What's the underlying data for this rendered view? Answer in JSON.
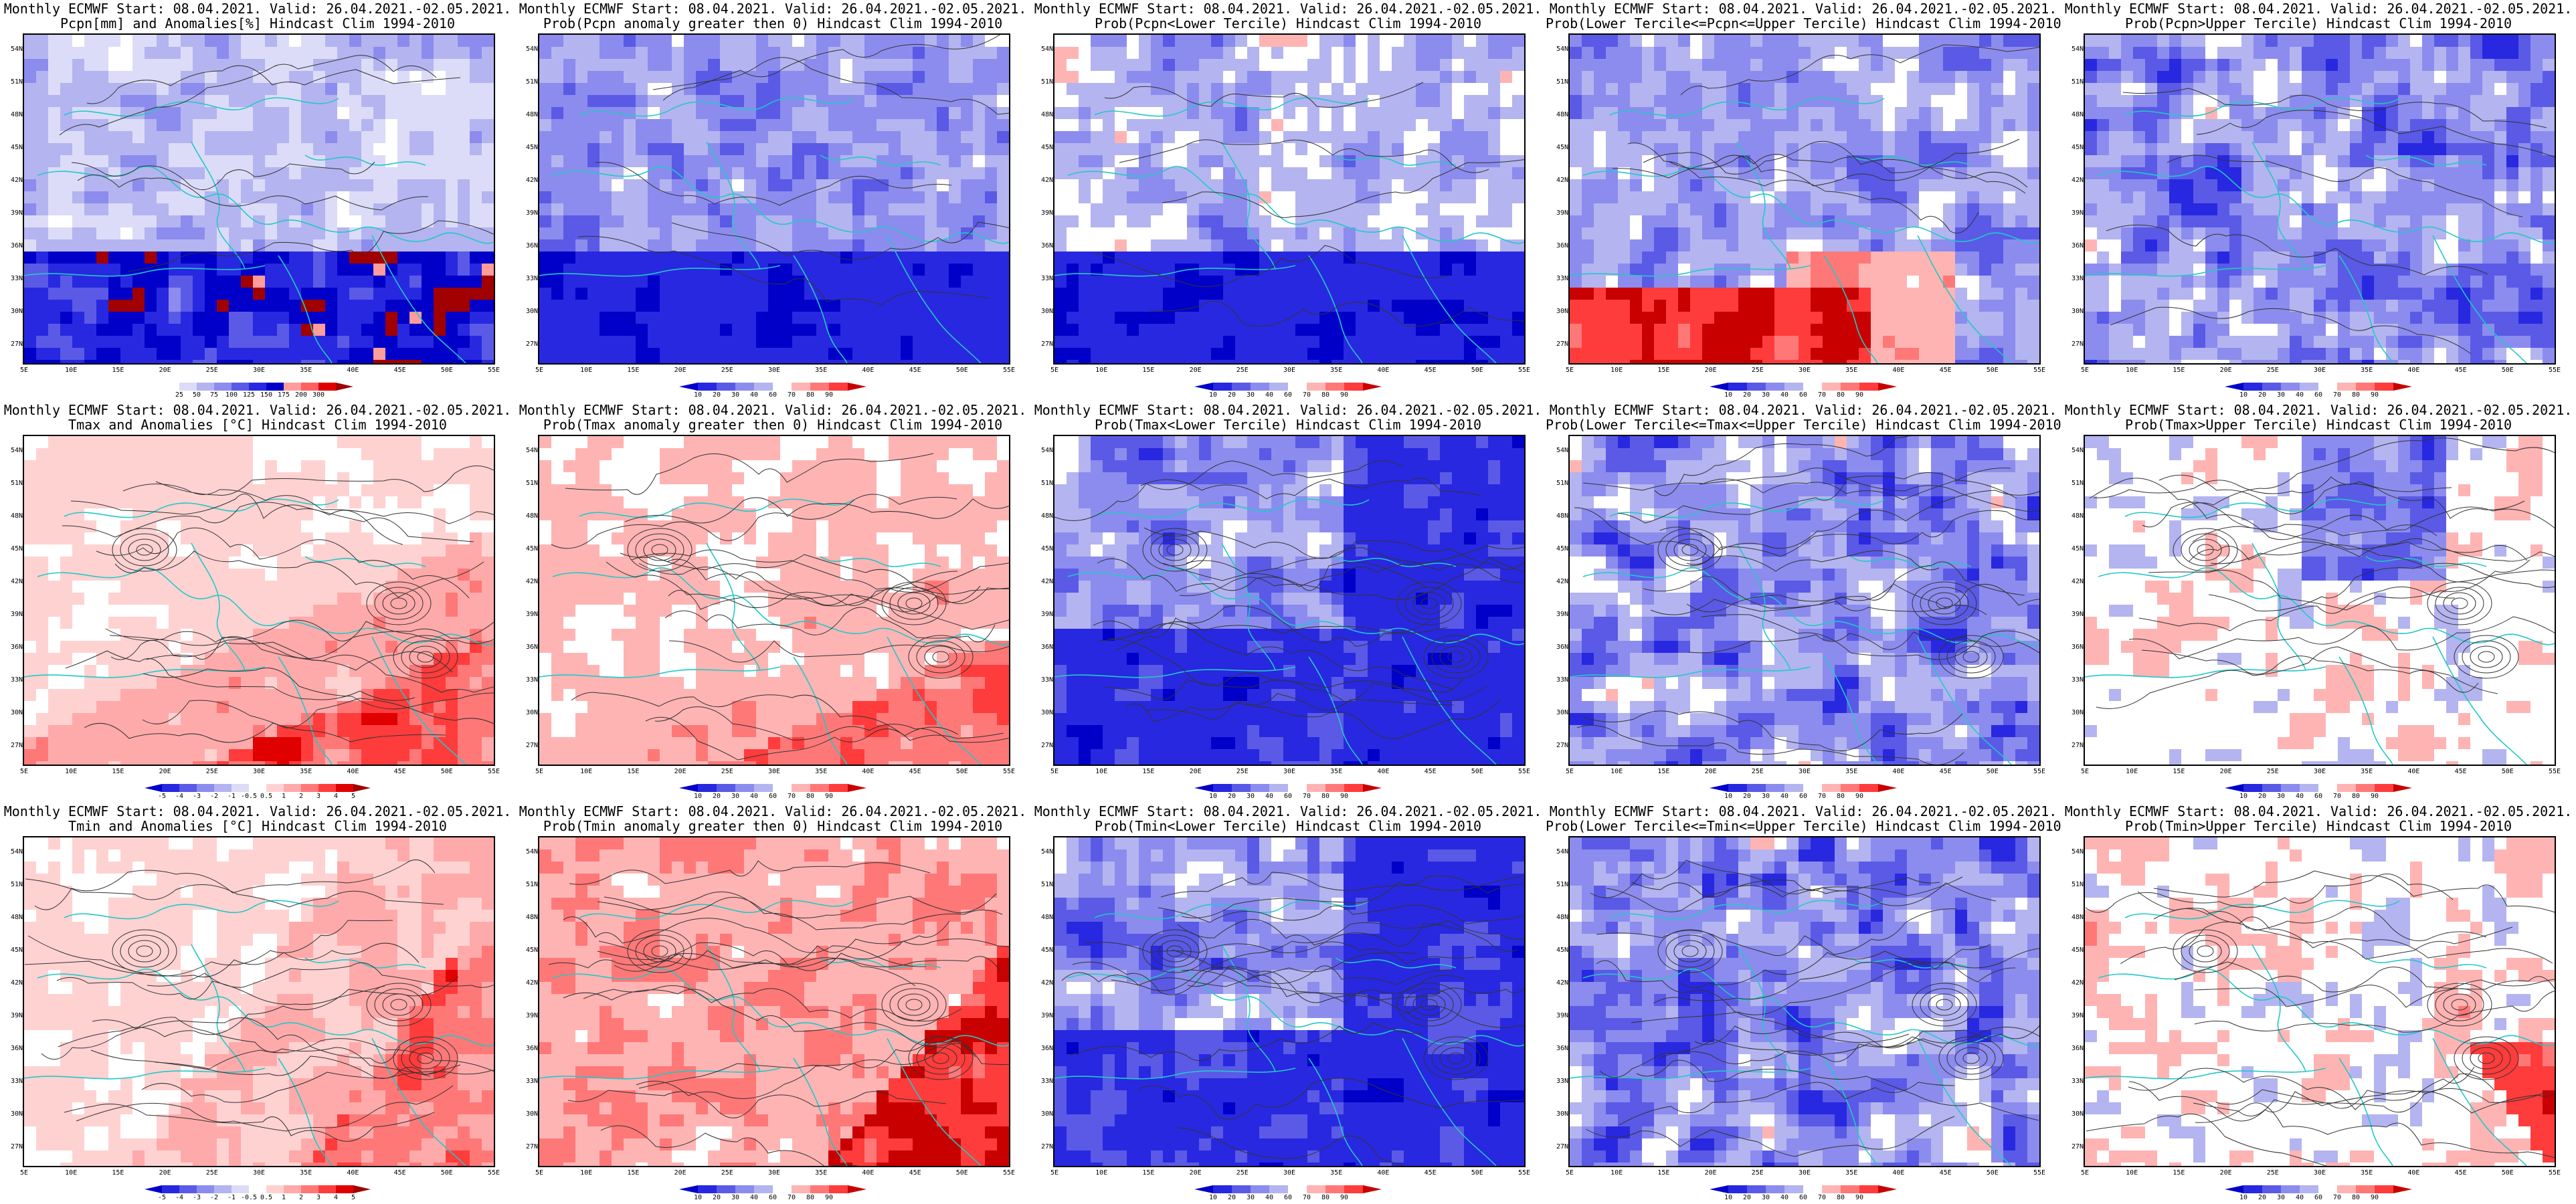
{
  "title_line1": "Monthly ECMWF Start: 08.04.2021. Valid: 26.04.2021.-02.05.2021.",
  "lat_labels": [
    "54N",
    "51N",
    "48N",
    "45N",
    "42N",
    "39N",
    "36N",
    "33N",
    "30N",
    "27N"
  ],
  "lon_labels": [
    "5E",
    "10E",
    "15E",
    "20E",
    "25E",
    "30E",
    "35E",
    "40E",
    "45E",
    "50E",
    "55E"
  ],
  "colors": {
    "pcpn_anom": [
      "#ffffff",
      "#dcdcf8",
      "#b4b4f0",
      "#8c8cee",
      "#5a5ae6",
      "#2828e0",
      "#0000c8",
      "#ff9c9c",
      "#ff6060",
      "#e00000",
      "#a00000"
    ],
    "prob": [
      "#0000c8",
      "#2828e0",
      "#5a5ae6",
      "#8c8cee",
      "#b4b4f0",
      "#ffffff",
      "#ffb4b4",
      "#ff7878",
      "#ff3c3c",
      "#c80000"
    ],
    "temp_anom": [
      "#0000c8",
      "#2828e0",
      "#5a5ae6",
      "#8c8cee",
      "#b4b4f0",
      "#dcdcf8",
      "#ffffff",
      "#ffd2d2",
      "#ffaaaa",
      "#ff7878",
      "#ff3c3c",
      "#e00000",
      "#a00000"
    ]
  },
  "legends": {
    "pcpn_anom": [
      "25",
      "50",
      "75",
      "100",
      "125",
      "150",
      "175",
      "200",
      "300"
    ],
    "prob": [
      "10",
      "20",
      "30",
      "40",
      "60",
      "70",
      "80",
      "90"
    ],
    "temp_anom": [
      "-5",
      "-4",
      "-3",
      "-2",
      "-1",
      "-0.5",
      "0.5",
      "1",
      "2",
      "3",
      "4",
      "5"
    ]
  },
  "panels": [
    {
      "id": "pcpn-anomaly",
      "line2": "Pcpn[mm] and Anomalies[%] Hindcast Clim 1994-2010",
      "scale": "pcpn_anom",
      "pattern": "pcpn_anom",
      "contours": "sparse"
    },
    {
      "id": "pcpn-prob-above-zero",
      "line2": "Prob(Pcpn anomaly greater then 0) Hindcast Clim 1994-2010",
      "scale": "prob",
      "pattern": "blue_south",
      "contours": "sparse"
    },
    {
      "id": "pcpn-prob-lower-tercile",
      "line2": "Prob(Pcpn<Lower Tercile) Hindcast Clim 1994-2010",
      "scale": "prob",
      "pattern": "blue_south_white",
      "contours": "sparse"
    },
    {
      "id": "pcpn-prob-middle-tercile",
      "line2": "Prob(Lower Tercile<=Pcpn<=Upper Tercile) Hindcast Clim 1994-2010",
      "scale": "prob",
      "pattern": "red_south",
      "contours": "sparse"
    },
    {
      "id": "pcpn-prob-upper-tercile",
      "line2": "Prob(Pcpn>Upper Tercile) Hindcast Clim 1994-2010",
      "scale": "prob",
      "pattern": "blue_mix",
      "contours": "sparse"
    },
    {
      "id": "tmax-anomaly",
      "line2": "Tmax and Anomalies [°C] Hindcast Clim 1994-2010",
      "scale": "temp_anom",
      "pattern": "red_southeast",
      "contours": "dense"
    },
    {
      "id": "tmax-prob-above-zero",
      "line2": "Prob(Tmax anomaly greater then 0) Hindcast Clim 1994-2010",
      "scale": "prob",
      "pattern": "red_southeast",
      "contours": "dense"
    },
    {
      "id": "tmax-prob-lower-tercile",
      "line2": "Prob(Tmax<Lower Tercile) Hindcast Clim 1994-2010",
      "scale": "prob",
      "pattern": "blue_strong",
      "contours": "dense"
    },
    {
      "id": "tmax-prob-middle-tercile",
      "line2": "Prob(Lower Tercile<=Tmax<=Upper Tercile) Hindcast Clim 1994-2010",
      "scale": "prob",
      "pattern": "blue_mix",
      "contours": "dense"
    },
    {
      "id": "tmax-prob-upper-tercile",
      "line2": "Prob(Tmax>Upper Tercile) Hindcast Clim 1994-2010",
      "scale": "prob",
      "pattern": "mostly_white",
      "contours": "dense"
    },
    {
      "id": "tmin-anomaly",
      "line2": "Tmin and Anomalies [°C] Hindcast Clim 1994-2010",
      "scale": "temp_anom",
      "pattern": "red_east",
      "contours": "dense"
    },
    {
      "id": "tmin-prob-above-zero",
      "line2": "Prob(Tmin anomaly greater then 0) Hindcast Clim 1994-2010",
      "scale": "prob",
      "pattern": "red_strong",
      "contours": "dense"
    },
    {
      "id": "tmin-prob-lower-tercile",
      "line2": "Prob(Tmin<Lower Tercile) Hindcast Clim 1994-2010",
      "scale": "prob",
      "pattern": "blue_strong",
      "contours": "dense"
    },
    {
      "id": "tmin-prob-middle-tercile",
      "line2": "Prob(Lower Tercile<=Tmin<=Upper Tercile) Hindcast Clim 1994-2010",
      "scale": "prob",
      "pattern": "blue_mix",
      "contours": "dense"
    },
    {
      "id": "tmin-prob-upper-tercile",
      "line2": "Prob(Tmin>Upper Tercile) Hindcast Clim 1994-2010",
      "scale": "prob",
      "pattern": "mostly_white_red",
      "contours": "dense"
    }
  ]
}
